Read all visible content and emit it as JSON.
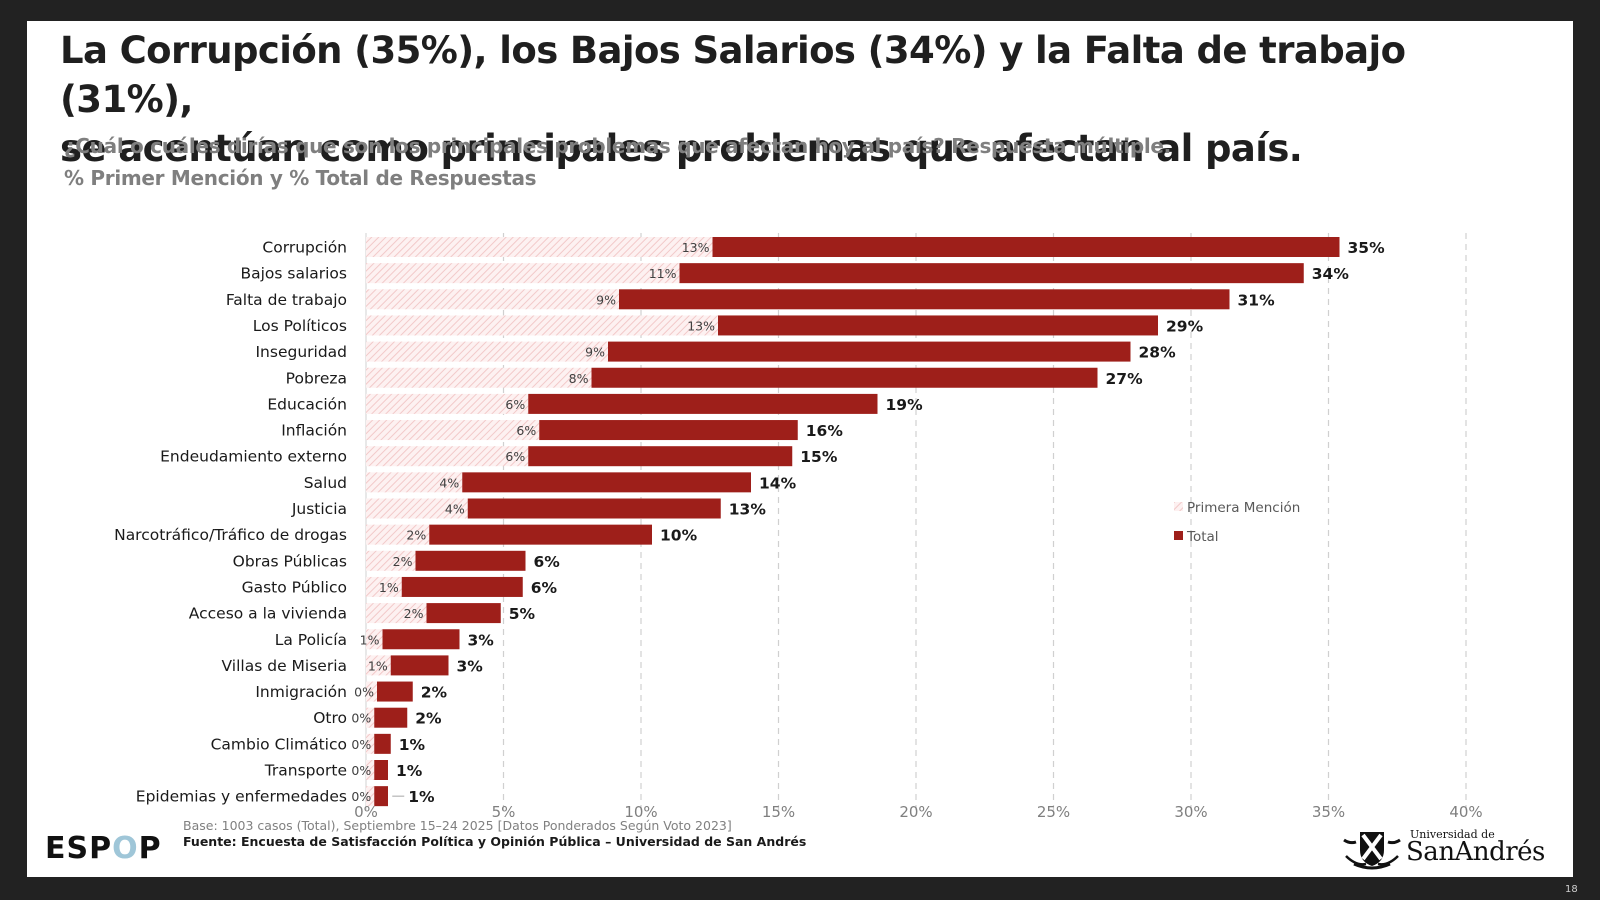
{
  "slide": {
    "title_line1": "La Corrupción (35%), los Bajos Salarios (34%) y la Falta de trabajo (31%),",
    "title_line2": "se acentúan como principales problemas que afectan al país.",
    "subtitle_line1": "¿Cuál o cuáles dirías que son los principales problemas que afectan hoy al país? Respuesta múltiple.",
    "subtitle_line2": "% Primer Mención y % Total de Respuestas",
    "footer_base": "Base: 1003 casos (Total), Septiembre 15–24 2025 [Datos Ponderados Según Voto 2023]",
    "footer_source": "Fuente: Encuesta de Satisfacción Política y Opinión Pública – Universidad de San Andrés",
    "logo_left": {
      "pre": "ESP",
      "o": "O",
      "post": "P"
    },
    "logo_right_small": "Universidad de",
    "logo_right_big": "SanAndrés",
    "page_number": "18"
  },
  "colors": {
    "total": "#9e1f1a",
    "first_hatch": "#f2c9c9",
    "first_bg": "#fdf1f1",
    "espop_o": "#9fc6d8"
  },
  "chart_data": {
    "type": "bar",
    "orientation": "horizontal",
    "stacked_overlay": "first mention drawn from 0, total bar shown from first-mention value to total value",
    "categories": [
      "Corrupción",
      "Bajos salarios",
      "Falta de trabajo",
      "Los Políticos",
      "Inseguridad",
      "Pobreza",
      "Educación",
      "Inflación",
      "Endeudamiento externo",
      "Salud",
      "Justicia",
      "Narcotráfico/Tráfico de drogas",
      "Obras Públicas",
      "Gasto Público",
      "Acceso a la vivienda",
      "La Policía",
      "Villas de Miseria",
      "Inmigración",
      "Otro",
      "Cambio Climático",
      "Transporte",
      "Epidemias y enfermedades"
    ],
    "series": [
      {
        "name": "Primera Mención",
        "pattern": "hatched",
        "values": [
          12.6,
          11.4,
          9.2,
          12.8,
          8.8,
          8.2,
          5.9,
          6.3,
          5.9,
          3.5,
          3.7,
          2.3,
          1.8,
          1.3,
          2.2,
          0.6,
          0.9,
          0.4,
          0.3,
          0.3,
          0.3,
          0.3
        ],
        "labels": [
          "13%",
          "11%",
          "9%",
          "13%",
          "9%",
          "8%",
          "6%",
          "6%",
          "6%",
          "4%",
          "4%",
          "2%",
          "2%",
          "1%",
          "2%",
          "1%",
          "1%",
          "0%",
          "0%",
          "0%",
          "0%",
          "0%"
        ]
      },
      {
        "name": "Total",
        "pattern": "solid",
        "values": [
          35.4,
          34.1,
          31.4,
          28.8,
          27.8,
          26.6,
          18.6,
          15.7,
          15.5,
          14.0,
          12.9,
          10.4,
          5.8,
          5.7,
          4.9,
          3.4,
          3.0,
          1.7,
          1.5,
          0.9,
          0.8,
          0.8
        ],
        "labels": [
          "35%",
          "34%",
          "31%",
          "29%",
          "28%",
          "27%",
          "19%",
          "16%",
          "15%",
          "14%",
          "13%",
          "10%",
          "6%",
          "6%",
          "5%",
          "3%",
          "3%",
          "2%",
          "2%",
          "1%",
          "1%",
          "1%"
        ]
      }
    ],
    "x_ticks": [
      0,
      5,
      10,
      15,
      20,
      25,
      30,
      35,
      40
    ],
    "x_tick_labels": [
      "0%",
      "5%",
      "10%",
      "15%",
      "20%",
      "25%",
      "30%",
      "35%",
      "40%"
    ],
    "xlim": [
      0,
      40
    ],
    "grid": "vertical dashed",
    "legend": {
      "position": "right-middle",
      "entries": [
        "Primera Mención",
        "Total"
      ]
    },
    "title": "",
    "xlabel": "",
    "ylabel": ""
  }
}
